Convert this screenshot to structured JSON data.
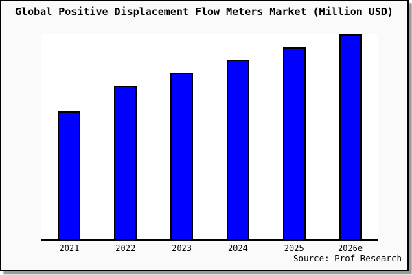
{
  "chart_data": {
    "type": "bar",
    "title": "Global Positive Displacement Flow Meters Market (Million USD)",
    "categories": [
      "2021",
      "2022",
      "2023",
      "2024",
      "2025",
      "2026e"
    ],
    "values": [
      186,
      223,
      242,
      261,
      279,
      298
    ],
    "values_note": "relative bar heights read from pixels; no numeric y-axis labels are shown in the chart",
    "xlabel": "",
    "ylabel": "",
    "ylim": [
      0,
      299
    ],
    "grid": false,
    "legend": false,
    "bar_color": "#0000ff",
    "bar_border_color": "#000000",
    "axis_color": "#000000",
    "plot_background": "#ffffff",
    "frame_background": "#fafafa",
    "source_label": "Source: Prof Research"
  }
}
